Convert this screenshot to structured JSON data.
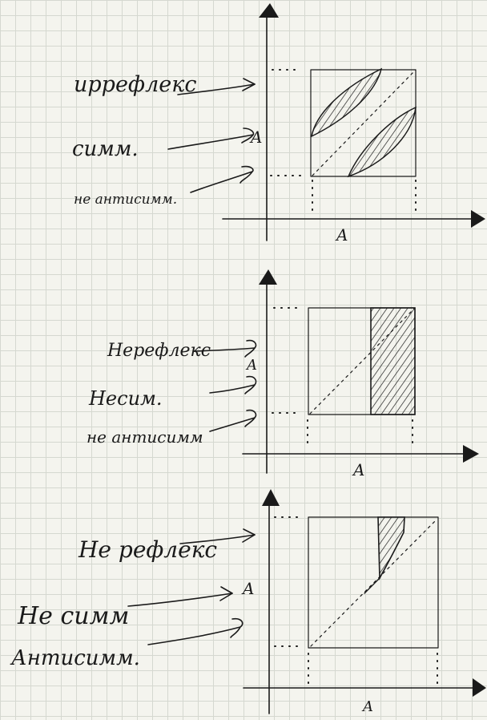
{
  "panels": [
    {
      "labels": {
        "top": "иррефлекс",
        "middle": "симм.",
        "bottom": "не антисимм."
      },
      "set_y": "A",
      "set_x": "A"
    },
    {
      "labels": {
        "top": "Нерефлекс",
        "middle": "Несим.",
        "bottom": "не антисимм"
      },
      "set_y": "A",
      "set_x": "A"
    },
    {
      "labels": {
        "top": "Не рефлекс",
        "middle": "Не симм",
        "bottom": "Антисимм."
      },
      "set_y": "A",
      "set_x": "A"
    }
  ]
}
